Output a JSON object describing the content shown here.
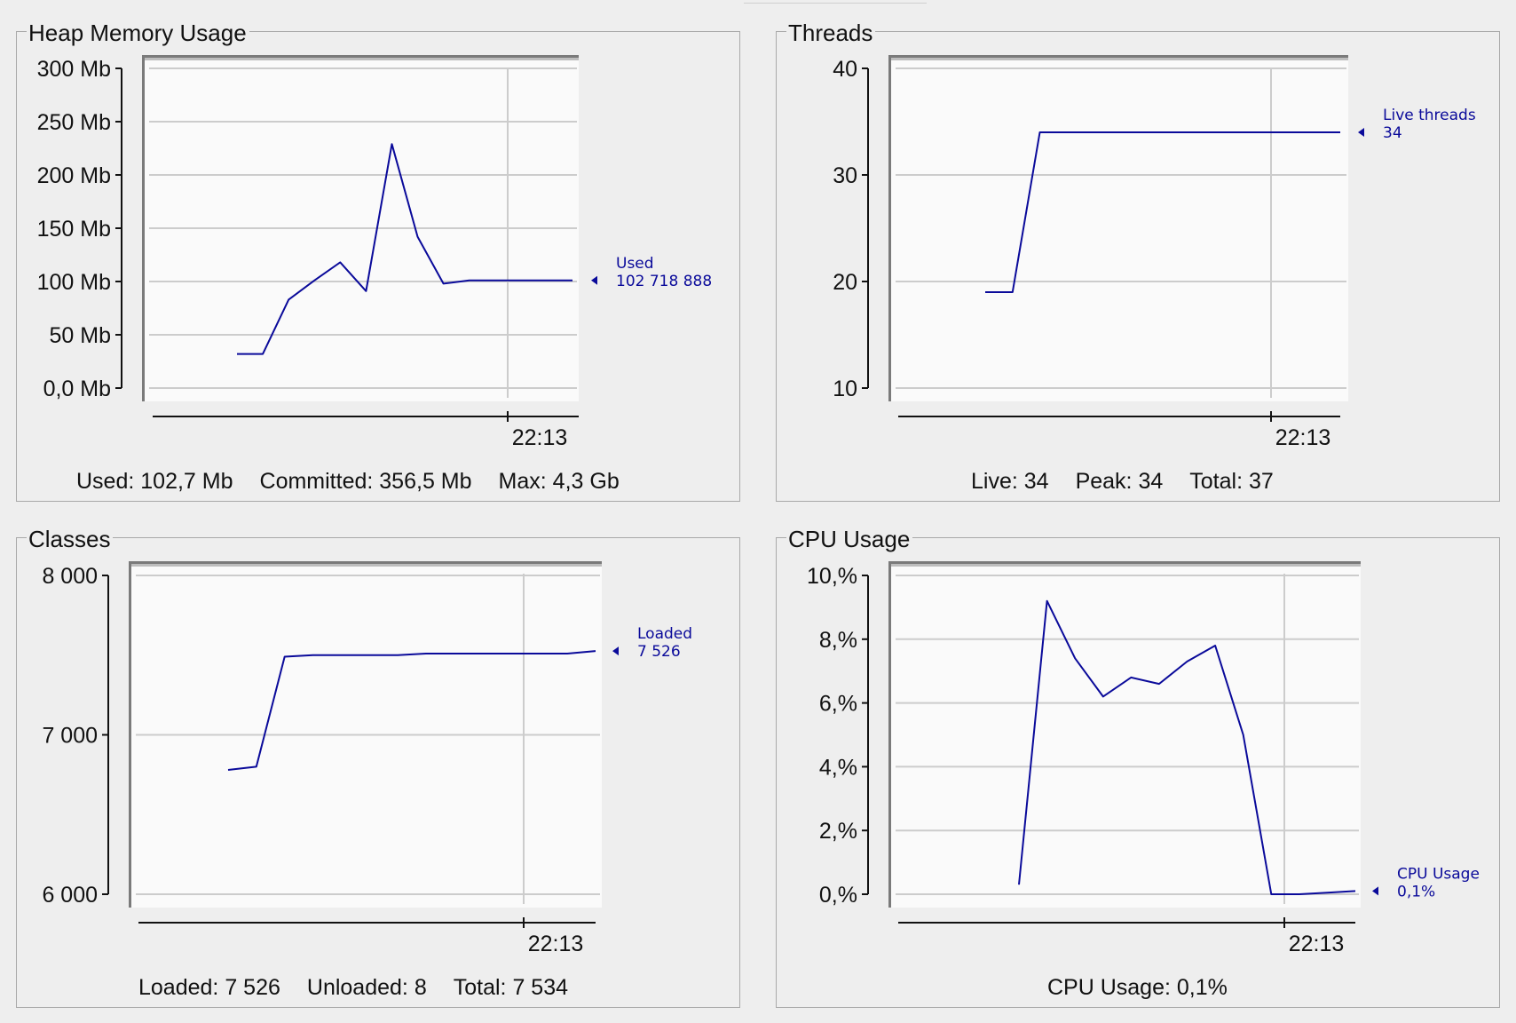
{
  "panels": [
    {
      "id": "heap",
      "title": "Heap Memory Usage",
      "stats": [
        {
          "label": "Used:",
          "value": "102,7 Mb"
        },
        {
          "label": "Committed:",
          "value": "356,5 Mb"
        },
        {
          "label": "Max:",
          "value": "4,3 Gb"
        }
      ]
    },
    {
      "id": "threads",
      "title": "Threads",
      "stats": [
        {
          "label": "Live:",
          "value": "34"
        },
        {
          "label": "Peak:",
          "value": "34"
        },
        {
          "label": "Total:",
          "value": "37"
        }
      ]
    },
    {
      "id": "classes",
      "title": "Classes",
      "stats": [
        {
          "label": "Loaded:",
          "value": "7 526"
        },
        {
          "label": "Unloaded:",
          "value": "8"
        },
        {
          "label": "Total:",
          "value": "7 534"
        }
      ]
    },
    {
      "id": "cpu",
      "title": "CPU Usage",
      "stats": [
        {
          "label": "CPU Usage:",
          "value": "0,1%"
        }
      ]
    }
  ],
  "colors": {
    "series": "#0a0a9a",
    "grid": "#cccccc",
    "plot_background": "#fafafa",
    "panel_background": "#eeeeee"
  },
  "chart_data": [
    {
      "type": "line",
      "title": "Heap Memory Usage",
      "y_unit": "Mb",
      "ylim": [
        0,
        300
      ],
      "y_ticks": [
        0,
        50,
        100,
        150,
        200,
        250,
        300
      ],
      "y_tick_labels": [
        "0,0 Mb",
        "50 Mb",
        "100 Mb",
        "150 Mb",
        "200 Mb",
        "250 Mb",
        "300 Mb"
      ],
      "x_tick_labels": [
        "22:13"
      ],
      "grid": true,
      "series": [
        {
          "name": "Used",
          "value_label": "102 718 888",
          "values": [
            32,
            32,
            83,
            101,
            118,
            91,
            229,
            142,
            98,
            101,
            101,
            101,
            101,
            101
          ]
        }
      ]
    },
    {
      "type": "line",
      "title": "Threads",
      "ylim": [
        10,
        40
      ],
      "y_ticks": [
        10,
        20,
        30,
        40
      ],
      "y_tick_labels": [
        "10",
        "20",
        "30",
        "40"
      ],
      "x_tick_labels": [
        "22:13"
      ],
      "grid": true,
      "series": [
        {
          "name": "Live threads",
          "value_label": "34",
          "values": [
            19,
            19,
            34,
            34,
            34,
            34,
            34,
            34,
            34,
            34,
            34,
            34,
            34,
            34
          ]
        }
      ]
    },
    {
      "type": "line",
      "title": "Classes",
      "ylim": [
        6000,
        8000
      ],
      "y_ticks": [
        6000,
        7000,
        8000
      ],
      "y_tick_labels": [
        "6 000",
        "7 000",
        "8 000"
      ],
      "x_tick_labels": [
        "22:13"
      ],
      "grid": true,
      "series": [
        {
          "name": "Loaded",
          "value_label": "7 526",
          "values": [
            6780,
            6800,
            7490,
            7500,
            7500,
            7500,
            7500,
            7510,
            7510,
            7510,
            7510,
            7510,
            7510,
            7526
          ]
        }
      ]
    },
    {
      "type": "line",
      "title": "CPU Usage",
      "y_unit": "%",
      "ylim": [
        0,
        10
      ],
      "y_ticks": [
        0,
        2,
        4,
        6,
        8,
        10
      ],
      "y_tick_labels": [
        "0,%",
        "2,%",
        "4,%",
        "6,%",
        "8,%",
        "10,%"
      ],
      "x_tick_labels": [
        "22:13"
      ],
      "grid": true,
      "series": [
        {
          "name": "CPU Usage",
          "value_label": "0,1%",
          "values": [
            0.3,
            9.2,
            7.4,
            6.2,
            6.8,
            6.6,
            7.3,
            7.8,
            5.0,
            0.0,
            0.0,
            0.05,
            0.1
          ]
        }
      ]
    }
  ]
}
